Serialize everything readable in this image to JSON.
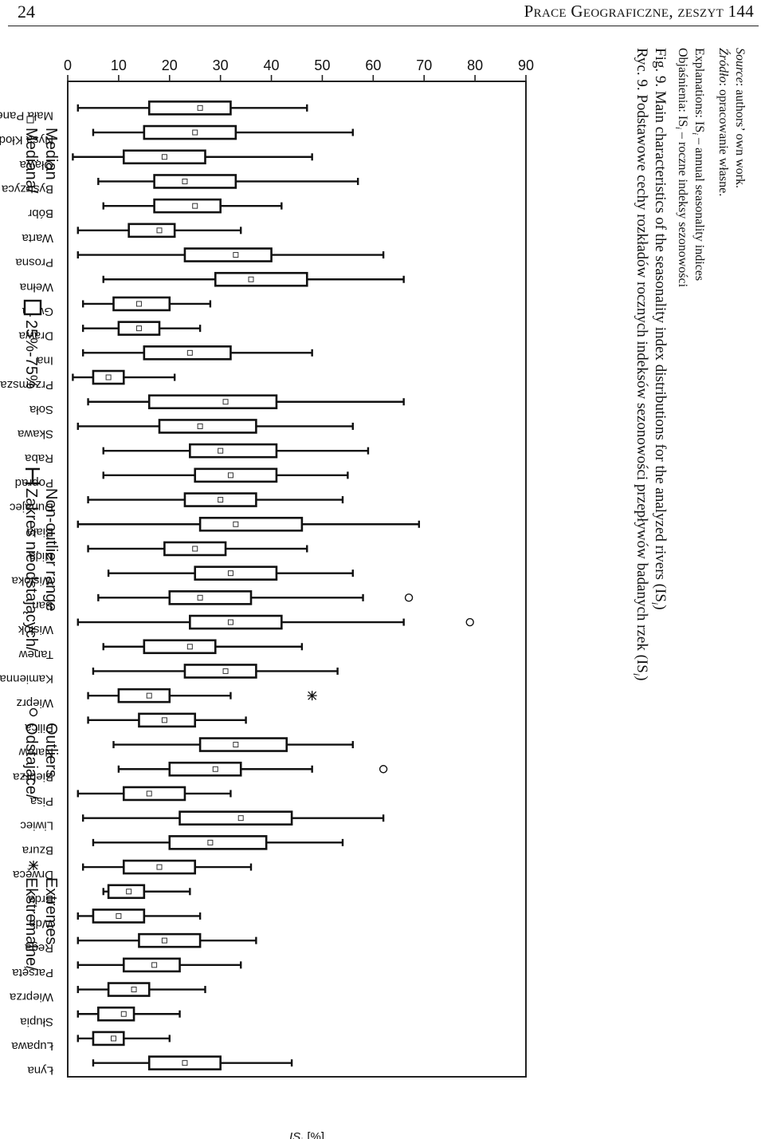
{
  "page": {
    "number": "24",
    "running_head": "Prace Geograficzne, zeszyt 144"
  },
  "legend": {
    "median_label_1": "Mediana/",
    "median_label_2": "Median",
    "box_label": "25%-75%",
    "range_label_1": "Zakres nieodstających/",
    "range_label_2": "Non-outlier range",
    "outliers_label_1": "Odstające/",
    "outliers_label_2": "Outliers",
    "extremes_label_1": "Ekstremalne/",
    "extremes_label_2": "Extremes"
  },
  "caption": {
    "pl": "Ryc. 9. Podstawowe cechy rozkładów rocznych indeksów sezonowości przepływów badanych rzek (IS",
    "pl_sub": "i",
    "pl_end": ")",
    "en": "Fig. 9. Main characteristics of the seasonality index distributions for the analyzed rivers (IS",
    "en_sub": "i",
    "en_end": ")"
  },
  "notes": {
    "objasnienia_prefix": "Objaśnienia: IS",
    "objasnienia_sub": "i",
    "objasnienia_rest": " – roczne indeksy sezonowości",
    "explanations_prefix": "Explanations: IS",
    "explanations_sub": "i",
    "explanations_rest": " – annual seasonality indices",
    "source_pl_label": "Źródło",
    "source_pl_rest": ": opracowanie własne.",
    "source_en_label": "Source",
    "source_en_rest": ": authors’ own work."
  },
  "chart_data": {
    "type": "boxplot",
    "ylabel_main": "IS",
    "ylabel_sub": "i",
    "ylabel_unit": "[%]",
    "ylim": [
      0,
      90
    ],
    "yticks": [
      "0",
      "10",
      "20",
      "30",
      "40",
      "50",
      "60",
      "70",
      "80",
      "90"
    ],
    "grid": false,
    "orientation": "rotated 90° clockwise on page",
    "categories": [
      "Mała Panew",
      "Nysa Kłodzka",
      "Oława",
      "Bystrzyca",
      "Bóbr",
      "Warta",
      "Prosna",
      "Wełna",
      "Gwda",
      "Drawa",
      "Ina",
      "Przemsza",
      "Soła",
      "Skawa",
      "Raba",
      "Poprad",
      "Dunajec",
      "Biała",
      "Nida",
      "Wisłoka",
      "San",
      "Wisłok",
      "Tanew",
      "Kamienna",
      "Wieprz",
      "Pilica",
      "Narew",
      "Biebrza",
      "Pisa",
      "Liwiec",
      "Bzura",
      "Drwęca",
      "Brda",
      "Wda",
      "Rega",
      "Parsęta",
      "Wieprza",
      "Słupia",
      "Łupawa",
      "Łyna"
    ],
    "series": [
      {
        "category": "Mała Panew",
        "min": 2,
        "q1": 16,
        "median": 26,
        "q3": 32,
        "max": 47,
        "outliers": [],
        "extremes": []
      },
      {
        "category": "Nysa Kłodzka",
        "min": 5,
        "q1": 15,
        "median": 25,
        "q3": 33,
        "max": 56,
        "outliers": [],
        "extremes": []
      },
      {
        "category": "Oława",
        "min": 1,
        "q1": 11,
        "median": 19,
        "q3": 27,
        "max": 48,
        "outliers": [],
        "extremes": []
      },
      {
        "category": "Bystrzyca",
        "min": 6,
        "q1": 17,
        "median": 23,
        "q3": 33,
        "max": 57,
        "outliers": [],
        "extremes": []
      },
      {
        "category": "Bóbr",
        "min": 7,
        "q1": 17,
        "median": 25,
        "q3": 30,
        "max": 42,
        "outliers": [],
        "extremes": []
      },
      {
        "category": "Warta",
        "min": 2,
        "q1": 12,
        "median": 18,
        "q3": 21,
        "max": 34,
        "outliers": [],
        "extremes": []
      },
      {
        "category": "Prosna",
        "min": 2,
        "q1": 23,
        "median": 33,
        "q3": 40,
        "max": 62,
        "outliers": [],
        "extremes": []
      },
      {
        "category": "Wełna",
        "min": 7,
        "q1": 29,
        "median": 36,
        "q3": 47,
        "max": 66,
        "outliers": [],
        "extremes": []
      },
      {
        "category": "Gwda",
        "min": 3,
        "q1": 9,
        "median": 14,
        "q3": 20,
        "max": 28,
        "outliers": [],
        "extremes": []
      },
      {
        "category": "Drawa",
        "min": 3,
        "q1": 10,
        "median": 14,
        "q3": 18,
        "max": 26,
        "outliers": [],
        "extremes": []
      },
      {
        "category": "Ina",
        "min": 3,
        "q1": 15,
        "median": 24,
        "q3": 32,
        "max": 48,
        "outliers": [],
        "extremes": []
      },
      {
        "category": "Przemsza",
        "min": 1,
        "q1": 5,
        "median": 8,
        "q3": 11,
        "max": 21,
        "outliers": [],
        "extremes": []
      },
      {
        "category": "Soła",
        "min": 4,
        "q1": 16,
        "median": 31,
        "q3": 41,
        "max": 66,
        "outliers": [],
        "extremes": []
      },
      {
        "category": "Skawa",
        "min": 2,
        "q1": 18,
        "median": 26,
        "q3": 37,
        "max": 56,
        "outliers": [],
        "extremes": []
      },
      {
        "category": "Raba",
        "min": 7,
        "q1": 24,
        "median": 30,
        "q3": 41,
        "max": 59,
        "outliers": [],
        "extremes": []
      },
      {
        "category": "Poprad",
        "min": 7,
        "q1": 25,
        "median": 32,
        "q3": 41,
        "max": 55,
        "outliers": [],
        "extremes": []
      },
      {
        "category": "Dunajec",
        "min": 4,
        "q1": 23,
        "median": 30,
        "q3": 37,
        "max": 54,
        "outliers": [],
        "extremes": []
      },
      {
        "category": "Biała",
        "min": 2,
        "q1": 26,
        "median": 33,
        "q3": 46,
        "max": 69,
        "outliers": [],
        "extremes": []
      },
      {
        "category": "Nida",
        "min": 4,
        "q1": 19,
        "median": 25,
        "q3": 31,
        "max": 47,
        "outliers": [],
        "extremes": []
      },
      {
        "category": "Wisłoka",
        "min": 8,
        "q1": 25,
        "median": 32,
        "q3": 41,
        "max": 56,
        "outliers": [],
        "extremes": []
      },
      {
        "category": "San",
        "min": 6,
        "q1": 20,
        "median": 26,
        "q3": 36,
        "max": 58,
        "outliers": [
          67
        ],
        "extremes": []
      },
      {
        "category": "Wisłok",
        "min": 2,
        "q1": 24,
        "median": 32,
        "q3": 42,
        "max": 66,
        "outliers": [
          79
        ],
        "extremes": []
      },
      {
        "category": "Tanew",
        "min": 7,
        "q1": 15,
        "median": 24,
        "q3": 29,
        "max": 46,
        "outliers": [],
        "extremes": []
      },
      {
        "category": "Kamienna",
        "min": 5,
        "q1": 23,
        "median": 31,
        "q3": 37,
        "max": 53,
        "outliers": [],
        "extremes": []
      },
      {
        "category": "Wieprz",
        "min": 4,
        "q1": 10,
        "median": 16,
        "q3": 20,
        "max": 32,
        "outliers": [],
        "extremes": [
          48
        ]
      },
      {
        "category": "Pilica",
        "min": 4,
        "q1": 14,
        "median": 19,
        "q3": 25,
        "max": 35,
        "outliers": [],
        "extremes": []
      },
      {
        "category": "Narew",
        "min": 9,
        "q1": 26,
        "median": 33,
        "q3": 43,
        "max": 56,
        "outliers": [],
        "extremes": []
      },
      {
        "category": "Biebrza",
        "min": 10,
        "q1": 20,
        "median": 29,
        "q3": 34,
        "max": 48,
        "outliers": [
          62
        ],
        "extremes": []
      },
      {
        "category": "Pisa",
        "min": 2,
        "q1": 11,
        "median": 16,
        "q3": 23,
        "max": 32,
        "outliers": [],
        "extremes": []
      },
      {
        "category": "Liwiec",
        "min": 3,
        "q1": 22,
        "median": 34,
        "q3": 44,
        "max": 62,
        "outliers": [],
        "extremes": []
      },
      {
        "category": "Bzura",
        "min": 5,
        "q1": 20,
        "median": 28,
        "q3": 39,
        "max": 54,
        "outliers": [],
        "extremes": []
      },
      {
        "category": "Drwęca",
        "min": 3,
        "q1": 11,
        "median": 18,
        "q3": 25,
        "max": 36,
        "outliers": [],
        "extremes": []
      },
      {
        "category": "Brda",
        "min": 7,
        "q1": 8,
        "median": 12,
        "q3": 15,
        "max": 24,
        "outliers": [],
        "extremes": []
      },
      {
        "category": "Wda",
        "min": 2,
        "q1": 5,
        "median": 10,
        "q3": 15,
        "max": 26,
        "outliers": [],
        "extremes": []
      },
      {
        "category": "Rega",
        "min": 2,
        "q1": 14,
        "median": 19,
        "q3": 26,
        "max": 37,
        "outliers": [],
        "extremes": []
      },
      {
        "category": "Parsęta",
        "min": 2,
        "q1": 11,
        "median": 17,
        "q3": 22,
        "max": 34,
        "outliers": [],
        "extremes": []
      },
      {
        "category": "Wieprza",
        "min": 2,
        "q1": 8,
        "median": 13,
        "q3": 16,
        "max": 27,
        "outliers": [],
        "extremes": []
      },
      {
        "category": "Słupia",
        "min": 2,
        "q1": 6,
        "median": 11,
        "q3": 13,
        "max": 22,
        "outliers": [],
        "extremes": []
      },
      {
        "category": "Łupawa",
        "min": 2,
        "q1": 5,
        "median": 9,
        "q3": 11,
        "max": 20,
        "outliers": [],
        "extremes": []
      },
      {
        "category": "Łyna",
        "min": 5,
        "q1": 16,
        "median": 23,
        "q3": 30,
        "max": 44,
        "outliers": [],
        "extremes": []
      }
    ]
  }
}
